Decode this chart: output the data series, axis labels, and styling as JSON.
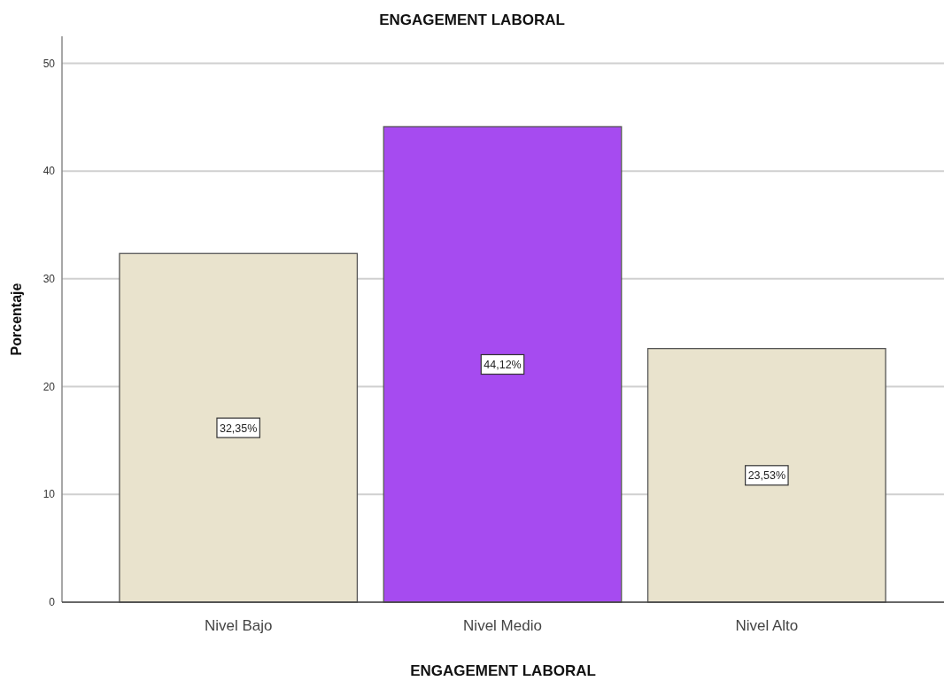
{
  "chart_data": {
    "type": "bar",
    "title": "ENGAGEMENT LABORAL",
    "xlabel": "ENGAGEMENT LABORAL",
    "ylabel": "Porcentaje",
    "categories": [
      "Nivel Bajo",
      "Nivel Medio",
      "Nivel Alto"
    ],
    "values": [
      32.35,
      44.12,
      23.53
    ],
    "colors": [
      "#e9e3cd",
      "#a64bf0",
      "#e9e3cd"
    ],
    "value_labels": [
      "32,35%",
      "44,12%",
      "23,53%"
    ],
    "ylim": [
      0,
      52.5
    ],
    "yticks": [
      0,
      10,
      20,
      30,
      40,
      50
    ],
    "grid": "y"
  }
}
